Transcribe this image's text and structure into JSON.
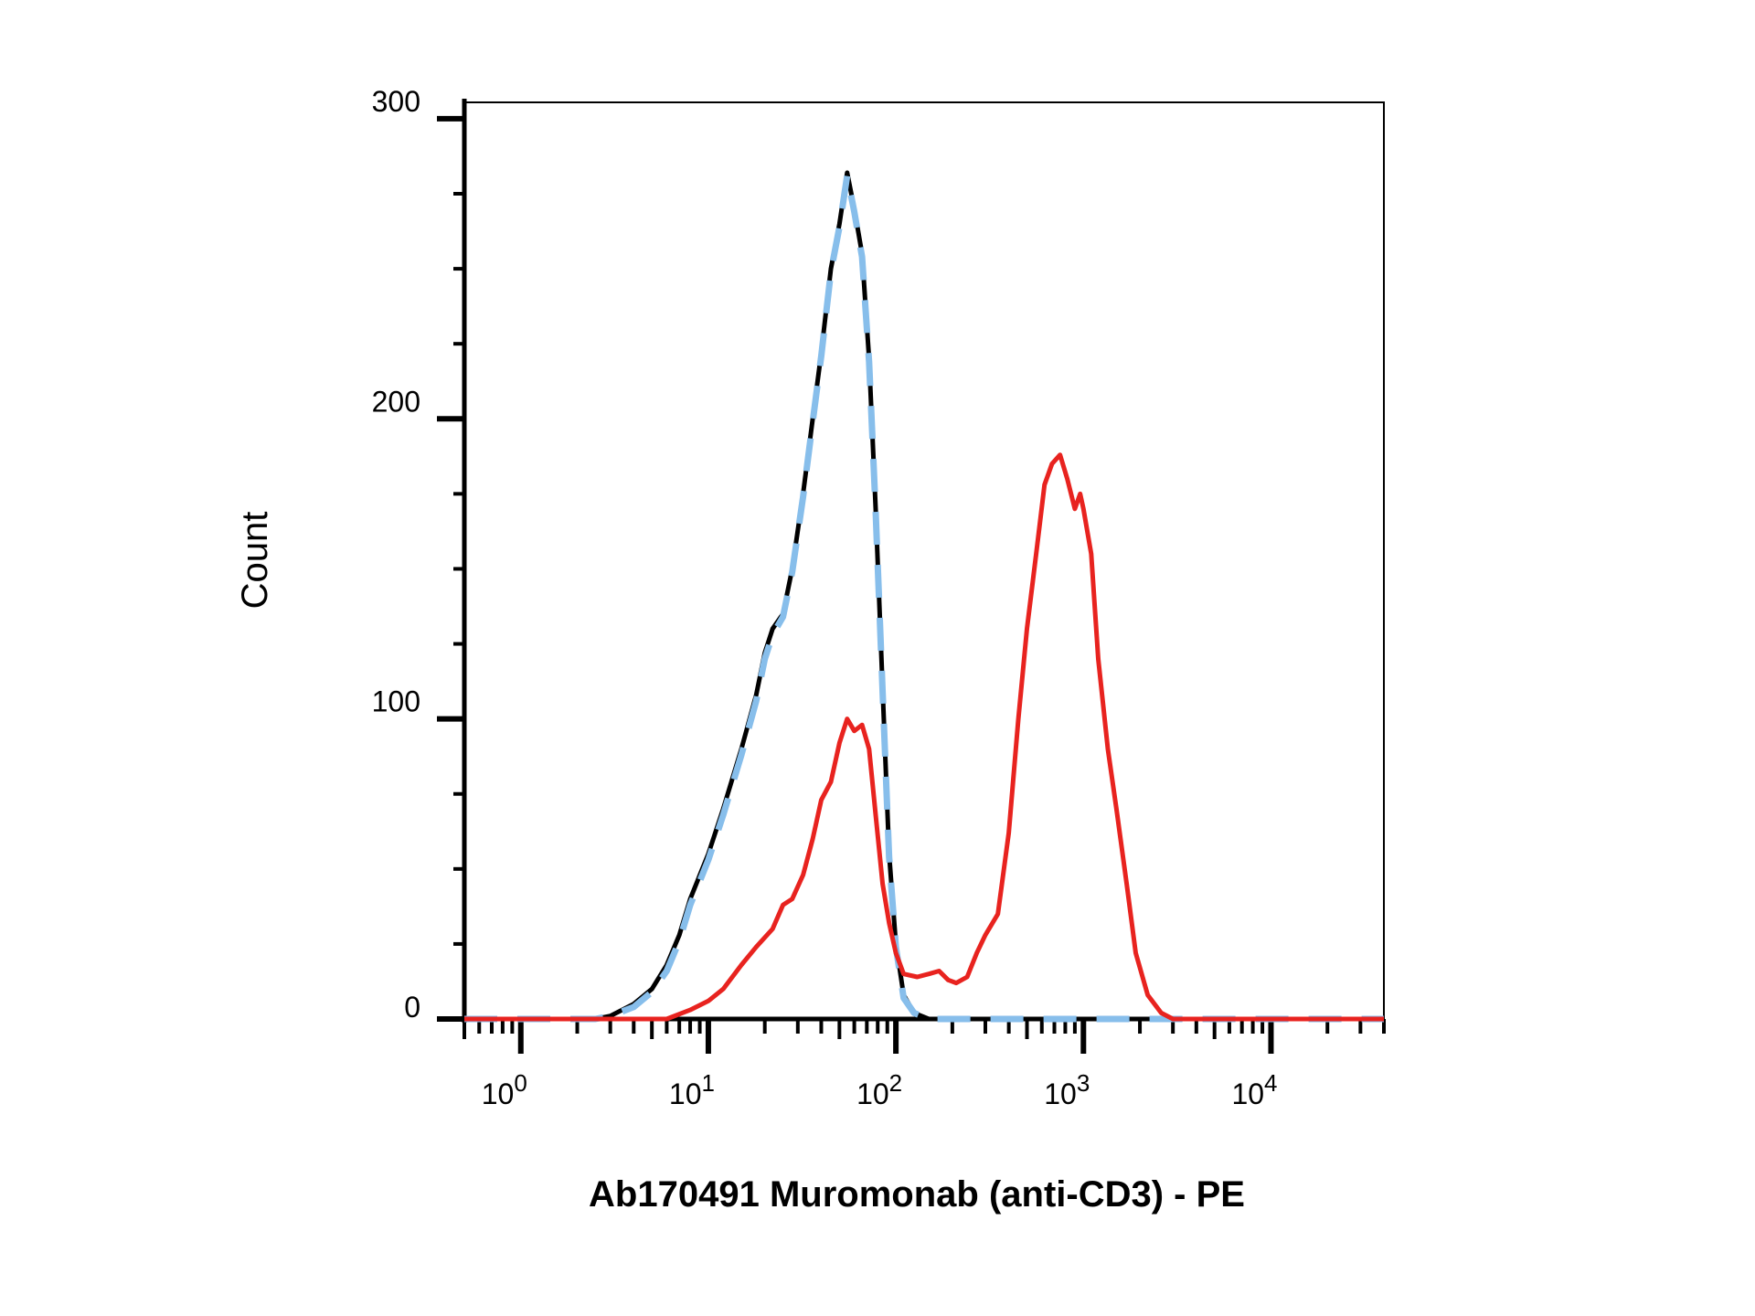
{
  "chart_data": {
    "type": "line",
    "title": "",
    "xlabel": "Ab170491 Muromonab (anti-CD3) - PE",
    "ylabel": "Count",
    "x_scale": "log",
    "xlim": [
      0.5,
      40000
    ],
    "ylim": [
      0,
      300
    ],
    "grid": false,
    "legend": "none",
    "y_ticks": [
      0,
      100,
      200,
      300
    ],
    "x_ticks": [
      {
        "value": 1,
        "base": "10",
        "exp": "0"
      },
      {
        "value": 10,
        "base": "10",
        "exp": "1"
      },
      {
        "value": 100,
        "base": "10",
        "exp": "2"
      },
      {
        "value": 1000,
        "base": "10",
        "exp": "3"
      },
      {
        "value": 10000,
        "base": "10",
        "exp": "4"
      }
    ],
    "series": [
      {
        "color": "#000000",
        "style": "solid",
        "points": [
          [
            0.5,
            0
          ],
          [
            2.5,
            0
          ],
          [
            3,
            1
          ],
          [
            4,
            5
          ],
          [
            5,
            10
          ],
          [
            6,
            18
          ],
          [
            7,
            28
          ],
          [
            8,
            40
          ],
          [
            10,
            55
          ],
          [
            12,
            70
          ],
          [
            15,
            90
          ],
          [
            18,
            108
          ],
          [
            20,
            122
          ],
          [
            22,
            130
          ],
          [
            25,
            135
          ],
          [
            28,
            150
          ],
          [
            32,
            175
          ],
          [
            36,
            200
          ],
          [
            40,
            222
          ],
          [
            45,
            250
          ],
          [
            50,
            265
          ],
          [
            55,
            282
          ],
          [
            60,
            270
          ],
          [
            66,
            255
          ],
          [
            72,
            220
          ],
          [
            78,
            170
          ],
          [
            85,
            110
          ],
          [
            92,
            55
          ],
          [
            100,
            25
          ],
          [
            110,
            8
          ],
          [
            125,
            2
          ],
          [
            150,
            0
          ],
          [
            40000,
            0
          ]
        ]
      },
      {
        "color": "#87BEEB",
        "style": "dashed",
        "points": [
          [
            0.5,
            0
          ],
          [
            2.5,
            0
          ],
          [
            3,
            1
          ],
          [
            4,
            4
          ],
          [
            5,
            9
          ],
          [
            6,
            16
          ],
          [
            7,
            26
          ],
          [
            8,
            38
          ],
          [
            10,
            53
          ],
          [
            12,
            68
          ],
          [
            15,
            88
          ],
          [
            18,
            106
          ],
          [
            20,
            120
          ],
          [
            22,
            128
          ],
          [
            25,
            134
          ],
          [
            28,
            149
          ],
          [
            32,
            174
          ],
          [
            36,
            199
          ],
          [
            40,
            221
          ],
          [
            45,
            249
          ],
          [
            50,
            264
          ],
          [
            55,
            281
          ],
          [
            60,
            269
          ],
          [
            66,
            254
          ],
          [
            72,
            219
          ],
          [
            78,
            169
          ],
          [
            85,
            109
          ],
          [
            92,
            54
          ],
          [
            100,
            24
          ],
          [
            110,
            7
          ],
          [
            125,
            2
          ],
          [
            150,
            0
          ],
          [
            40000,
            0
          ]
        ]
      },
      {
        "color": "#E8231F",
        "style": "solid",
        "points": [
          [
            0.5,
            0
          ],
          [
            6,
            0
          ],
          [
            8,
            3
          ],
          [
            10,
            6
          ],
          [
            12,
            10
          ],
          [
            15,
            18
          ],
          [
            18,
            24
          ],
          [
            22,
            30
          ],
          [
            25,
            38
          ],
          [
            28,
            40
          ],
          [
            32,
            48
          ],
          [
            36,
            60
          ],
          [
            40,
            73
          ],
          [
            45,
            79
          ],
          [
            50,
            92
          ],
          [
            55,
            100
          ],
          [
            60,
            96
          ],
          [
            66,
            98
          ],
          [
            72,
            90
          ],
          [
            78,
            68
          ],
          [
            85,
            45
          ],
          [
            92,
            32
          ],
          [
            100,
            22
          ],
          [
            110,
            15
          ],
          [
            130,
            14
          ],
          [
            150,
            15
          ],
          [
            170,
            16
          ],
          [
            190,
            13
          ],
          [
            210,
            12
          ],
          [
            240,
            14
          ],
          [
            270,
            22
          ],
          [
            300,
            28
          ],
          [
            350,
            35
          ],
          [
            400,
            62
          ],
          [
            450,
            100
          ],
          [
            500,
            130
          ],
          [
            560,
            155
          ],
          [
            620,
            178
          ],
          [
            680,
            185
          ],
          [
            750,
            188
          ],
          [
            820,
            180
          ],
          [
            900,
            170
          ],
          [
            960,
            175
          ],
          [
            1000,
            170
          ],
          [
            1100,
            155
          ],
          [
            1200,
            120
          ],
          [
            1350,
            90
          ],
          [
            1500,
            70
          ],
          [
            1700,
            45
          ],
          [
            1900,
            22
          ],
          [
            2200,
            8
          ],
          [
            2600,
            2
          ],
          [
            3000,
            0
          ],
          [
            40000,
            0
          ]
        ]
      }
    ]
  }
}
